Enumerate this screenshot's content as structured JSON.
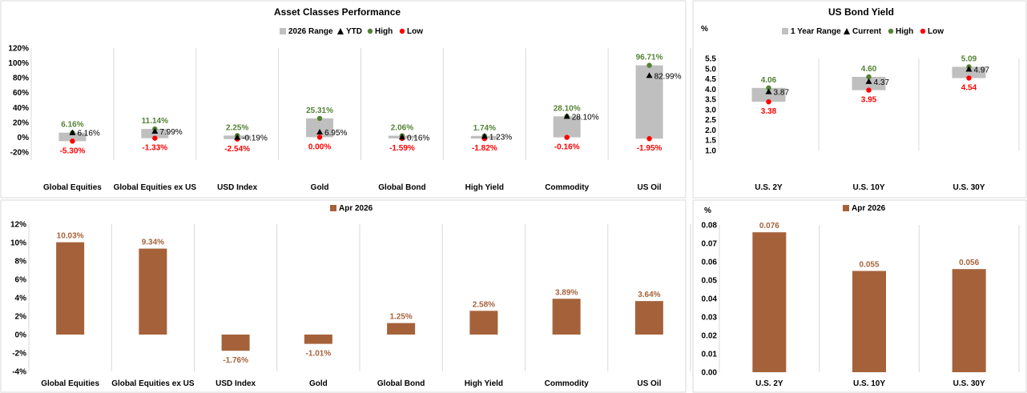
{
  "chart_data": [
    {
      "type": "range",
      "title": "Asset Classes Performance",
      "ylim": [
        -20,
        120
      ],
      "yticks": [
        "-20%",
        "0%",
        "20%",
        "40%",
        "60%",
        "80%",
        "100%",
        "120%"
      ],
      "ytick_values": [
        -20,
        0,
        20,
        40,
        60,
        80,
        100,
        120
      ],
      "legend": [
        "2026 Range",
        "YTD",
        "High",
        "Low"
      ],
      "legend_position": "top",
      "gridlines": "vertical category separators",
      "categories": [
        "Global Equities",
        "Global Equities ex US",
        "USD Index",
        "Gold",
        "Global Bond",
        "High Yield",
        "Commodity",
        "US Oil"
      ],
      "high": [
        6.16,
        11.14,
        2.25,
        25.31,
        2.06,
        1.74,
        28.1,
        96.71
      ],
      "low": [
        -5.3,
        -1.33,
        -2.54,
        0.0,
        -1.59,
        -1.82,
        -0.16,
        -1.95
      ],
      "ytd": [
        6.16,
        7.99,
        -0.19,
        6.95,
        0.16,
        1.23,
        28.1,
        82.99
      ],
      "high_labels": [
        "6.16%",
        "11.14%",
        "2.25%",
        "25.31%",
        "2.06%",
        "1.74%",
        "28.10%",
        "96.71%"
      ],
      "low_labels": [
        "-5.30%",
        "-1.33%",
        "-2.54%",
        "0.00%",
        "-1.59%",
        "-1.82%",
        "-0.16%",
        "-1.95%"
      ],
      "ytd_labels": [
        "6.16%",
        "7.99%",
        "-0.19%",
        "6.95%",
        "0.16%",
        "1.23%",
        "28.10%",
        "82.99%"
      ]
    },
    {
      "type": "range",
      "title": "US Bond Yield",
      "ylabel": "%",
      "ylim": [
        1.0,
        5.5
      ],
      "yticks": [
        "1.0",
        "1.5",
        "2.0",
        "2.5",
        "3.0",
        "3.5",
        "4.0",
        "4.5",
        "5.0",
        "5.5"
      ],
      "ytick_values": [
        1.0,
        1.5,
        2.0,
        2.5,
        3.0,
        3.5,
        4.0,
        4.5,
        5.0,
        5.5
      ],
      "legend": [
        "1 Year Range",
        "Current",
        "High",
        "Low"
      ],
      "legend_position": "top",
      "gridlines": "vertical category separators",
      "categories": [
        "U.S. 2Y",
        "U.S. 10Y",
        "U.S. 30Y"
      ],
      "high": [
        4.06,
        4.6,
        5.09
      ],
      "low": [
        3.38,
        3.95,
        4.54
      ],
      "current": [
        3.87,
        4.37,
        4.97
      ],
      "high_labels": [
        "4.06",
        "4.60",
        "5.09"
      ],
      "low_labels": [
        "3.38",
        "3.95",
        "4.54"
      ],
      "current_labels": [
        "3.87",
        "4.37",
        "4.97"
      ]
    },
    {
      "type": "bar",
      "legend": [
        "Apr 2026"
      ],
      "legend_position": "top",
      "ylim": [
        -4,
        12
      ],
      "yticks": [
        "-4%",
        "-2%",
        "0%",
        "2%",
        "4%",
        "6%",
        "8%",
        "10%",
        "12%"
      ],
      "ytick_values": [
        -4,
        -2,
        0,
        2,
        4,
        6,
        8,
        10,
        12
      ],
      "gridlines": "vertical category separators",
      "categories": [
        "Global Equities",
        "Global Equities ex US",
        "USD Index",
        "Gold",
        "Global Bond",
        "High Yield",
        "Commodity",
        "US Oil"
      ],
      "series": [
        {
          "name": "Apr 2026",
          "values": [
            10.03,
            9.34,
            -1.76,
            -1.01,
            1.25,
            2.58,
            3.89,
            3.64
          ]
        }
      ],
      "value_labels": [
        "10.03%",
        "9.34%",
        "-1.76%",
        "-1.01%",
        "1.25%",
        "2.58%",
        "3.89%",
        "3.64%"
      ]
    },
    {
      "type": "bar",
      "ylabel": "%",
      "legend": [
        "Apr 2026"
      ],
      "legend_position": "top",
      "ylim": [
        0,
        0.08
      ],
      "yticks": [
        "0.00",
        "0.01",
        "0.02",
        "0.03",
        "0.04",
        "0.05",
        "0.06",
        "0.07",
        "0.08"
      ],
      "ytick_values": [
        0,
        0.01,
        0.02,
        0.03,
        0.04,
        0.05,
        0.06,
        0.07,
        0.08
      ],
      "gridlines": "vertical category separators",
      "categories": [
        "U.S. 2Y",
        "U.S. 10Y",
        "U.S. 30Y"
      ],
      "series": [
        {
          "name": "Apr 2026",
          "values": [
            0.076,
            0.055,
            0.056
          ]
        }
      ],
      "value_labels": [
        "0.076",
        "0.055",
        "0.056"
      ]
    }
  ],
  "colors": {
    "range_bar": "#bfbfbf",
    "high_marker": "#548235",
    "low_marker": "#ff0000",
    "current_marker": "#000000",
    "monthly_bar": "#a5623a",
    "monthly_label": "#a5623a",
    "separator": "#d9d9d9"
  }
}
